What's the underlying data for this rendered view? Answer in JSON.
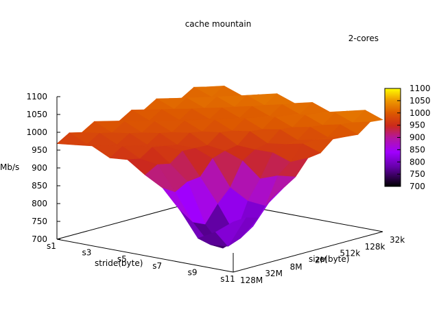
{
  "chart_data": {
    "type": "surface",
    "title": "cache mountain",
    "legend": "2-cores",
    "zlabel": "Mb/s",
    "xlabel": "stride(byte)",
    "ylabel": "size(byte)",
    "zlim": [
      700,
      1100
    ],
    "z_ticks": [
      "700",
      "750",
      "800",
      "850",
      "900",
      "950",
      "1000",
      "1050",
      "1100"
    ],
    "x_ticks": [
      "s1",
      "s3",
      "s5",
      "s7",
      "s9",
      "s11"
    ],
    "y_ticks": [
      "128M",
      "32M",
      "8M",
      "2M",
      "512k",
      "128k",
      "32k"
    ],
    "strides": [
      "s1",
      "s2",
      "s3",
      "s4",
      "s5",
      "s6",
      "s7",
      "s8",
      "s9",
      "s10",
      "s11"
    ],
    "sizes": [
      "128M",
      "64M",
      "32M",
      "16M",
      "8M",
      "4M",
      "2M",
      "1M",
      "512k",
      "256k",
      "128k",
      "64k",
      "32k"
    ],
    "colorbar": {
      "range": [
        700,
        1100
      ],
      "ticks": [
        "700",
        "750",
        "800",
        "850",
        "900",
        "950",
        "1000",
        "1050",
        "1100"
      ]
    },
    "grid": false
  }
}
